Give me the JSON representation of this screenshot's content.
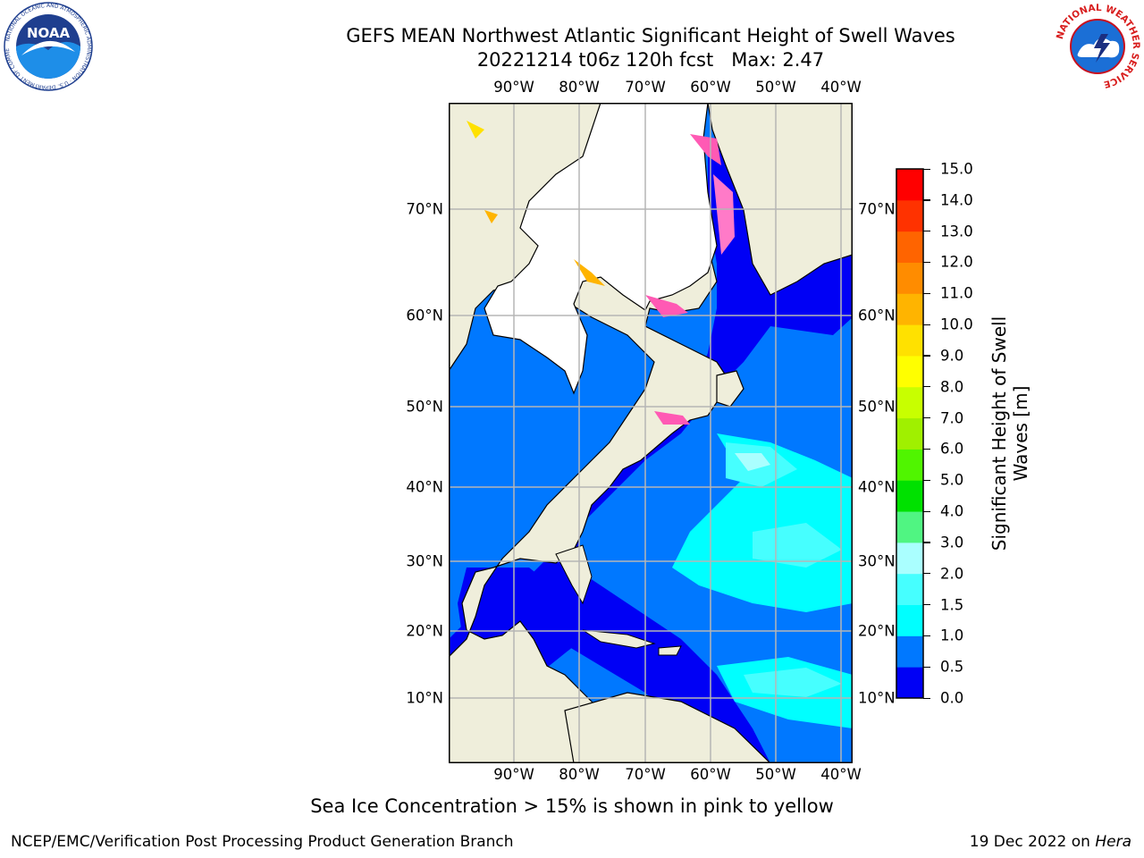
{
  "header": {
    "title_line1": "GEFS MEAN Northwest Atlantic Significant Height of Swell Waves",
    "title_line2": "20221214 t06z 120h fcst   Max: 2.47"
  },
  "logos": {
    "noaa_text": "NOAA",
    "noaa_ring_text": "NATIONAL OCEANIC AND ATMOSPHERIC ADMINISTRATION · U.S. DEPARTMENT OF COMMERCE",
    "nws_ring_text": "NATIONAL WEATHER SERVICE"
  },
  "map": {
    "lon_labels": [
      "90°W",
      "80°W",
      "70°W",
      "60°W",
      "50°W",
      "40°W"
    ],
    "lat_labels": [
      "70°N",
      "60°N",
      "50°N",
      "40°N",
      "30°N",
      "20°N",
      "10°N"
    ],
    "land_color": "#efeedb",
    "ice_region_color": "#ffffff",
    "gridline_color": "#b5b5b5"
  },
  "colorbar": {
    "title_line1": "Significant Height of Swell",
    "title_line2": "Waves [m]",
    "ticks": [
      "0.0",
      "0.5",
      "1.0",
      "1.5",
      "2.0",
      "3.0",
      "4.0",
      "5.0",
      "6.0",
      "7.0",
      "8.0",
      "9.0",
      "10.0",
      "11.0",
      "12.0",
      "13.0",
      "14.0",
      "15.0"
    ],
    "colors": [
      "#0000f5",
      "#0078ff",
      "#00ffff",
      "#46ffff",
      "#aaffff",
      "#50f582",
      "#00e100",
      "#50f500",
      "#a0f000",
      "#c8ff00",
      "#ffff00",
      "#ffe100",
      "#ffb400",
      "#ff8c00",
      "#ff6400",
      "#ff3200",
      "#ff0000"
    ]
  },
  "footer": {
    "caption": "Sea Ice Concentration > 15% is shown in pink to yellow",
    "credit": "NCEP/EMC/Verification Post Processing Product Generation Branch",
    "date": "19 Dec 2022 on ",
    "host": "Hera"
  }
}
